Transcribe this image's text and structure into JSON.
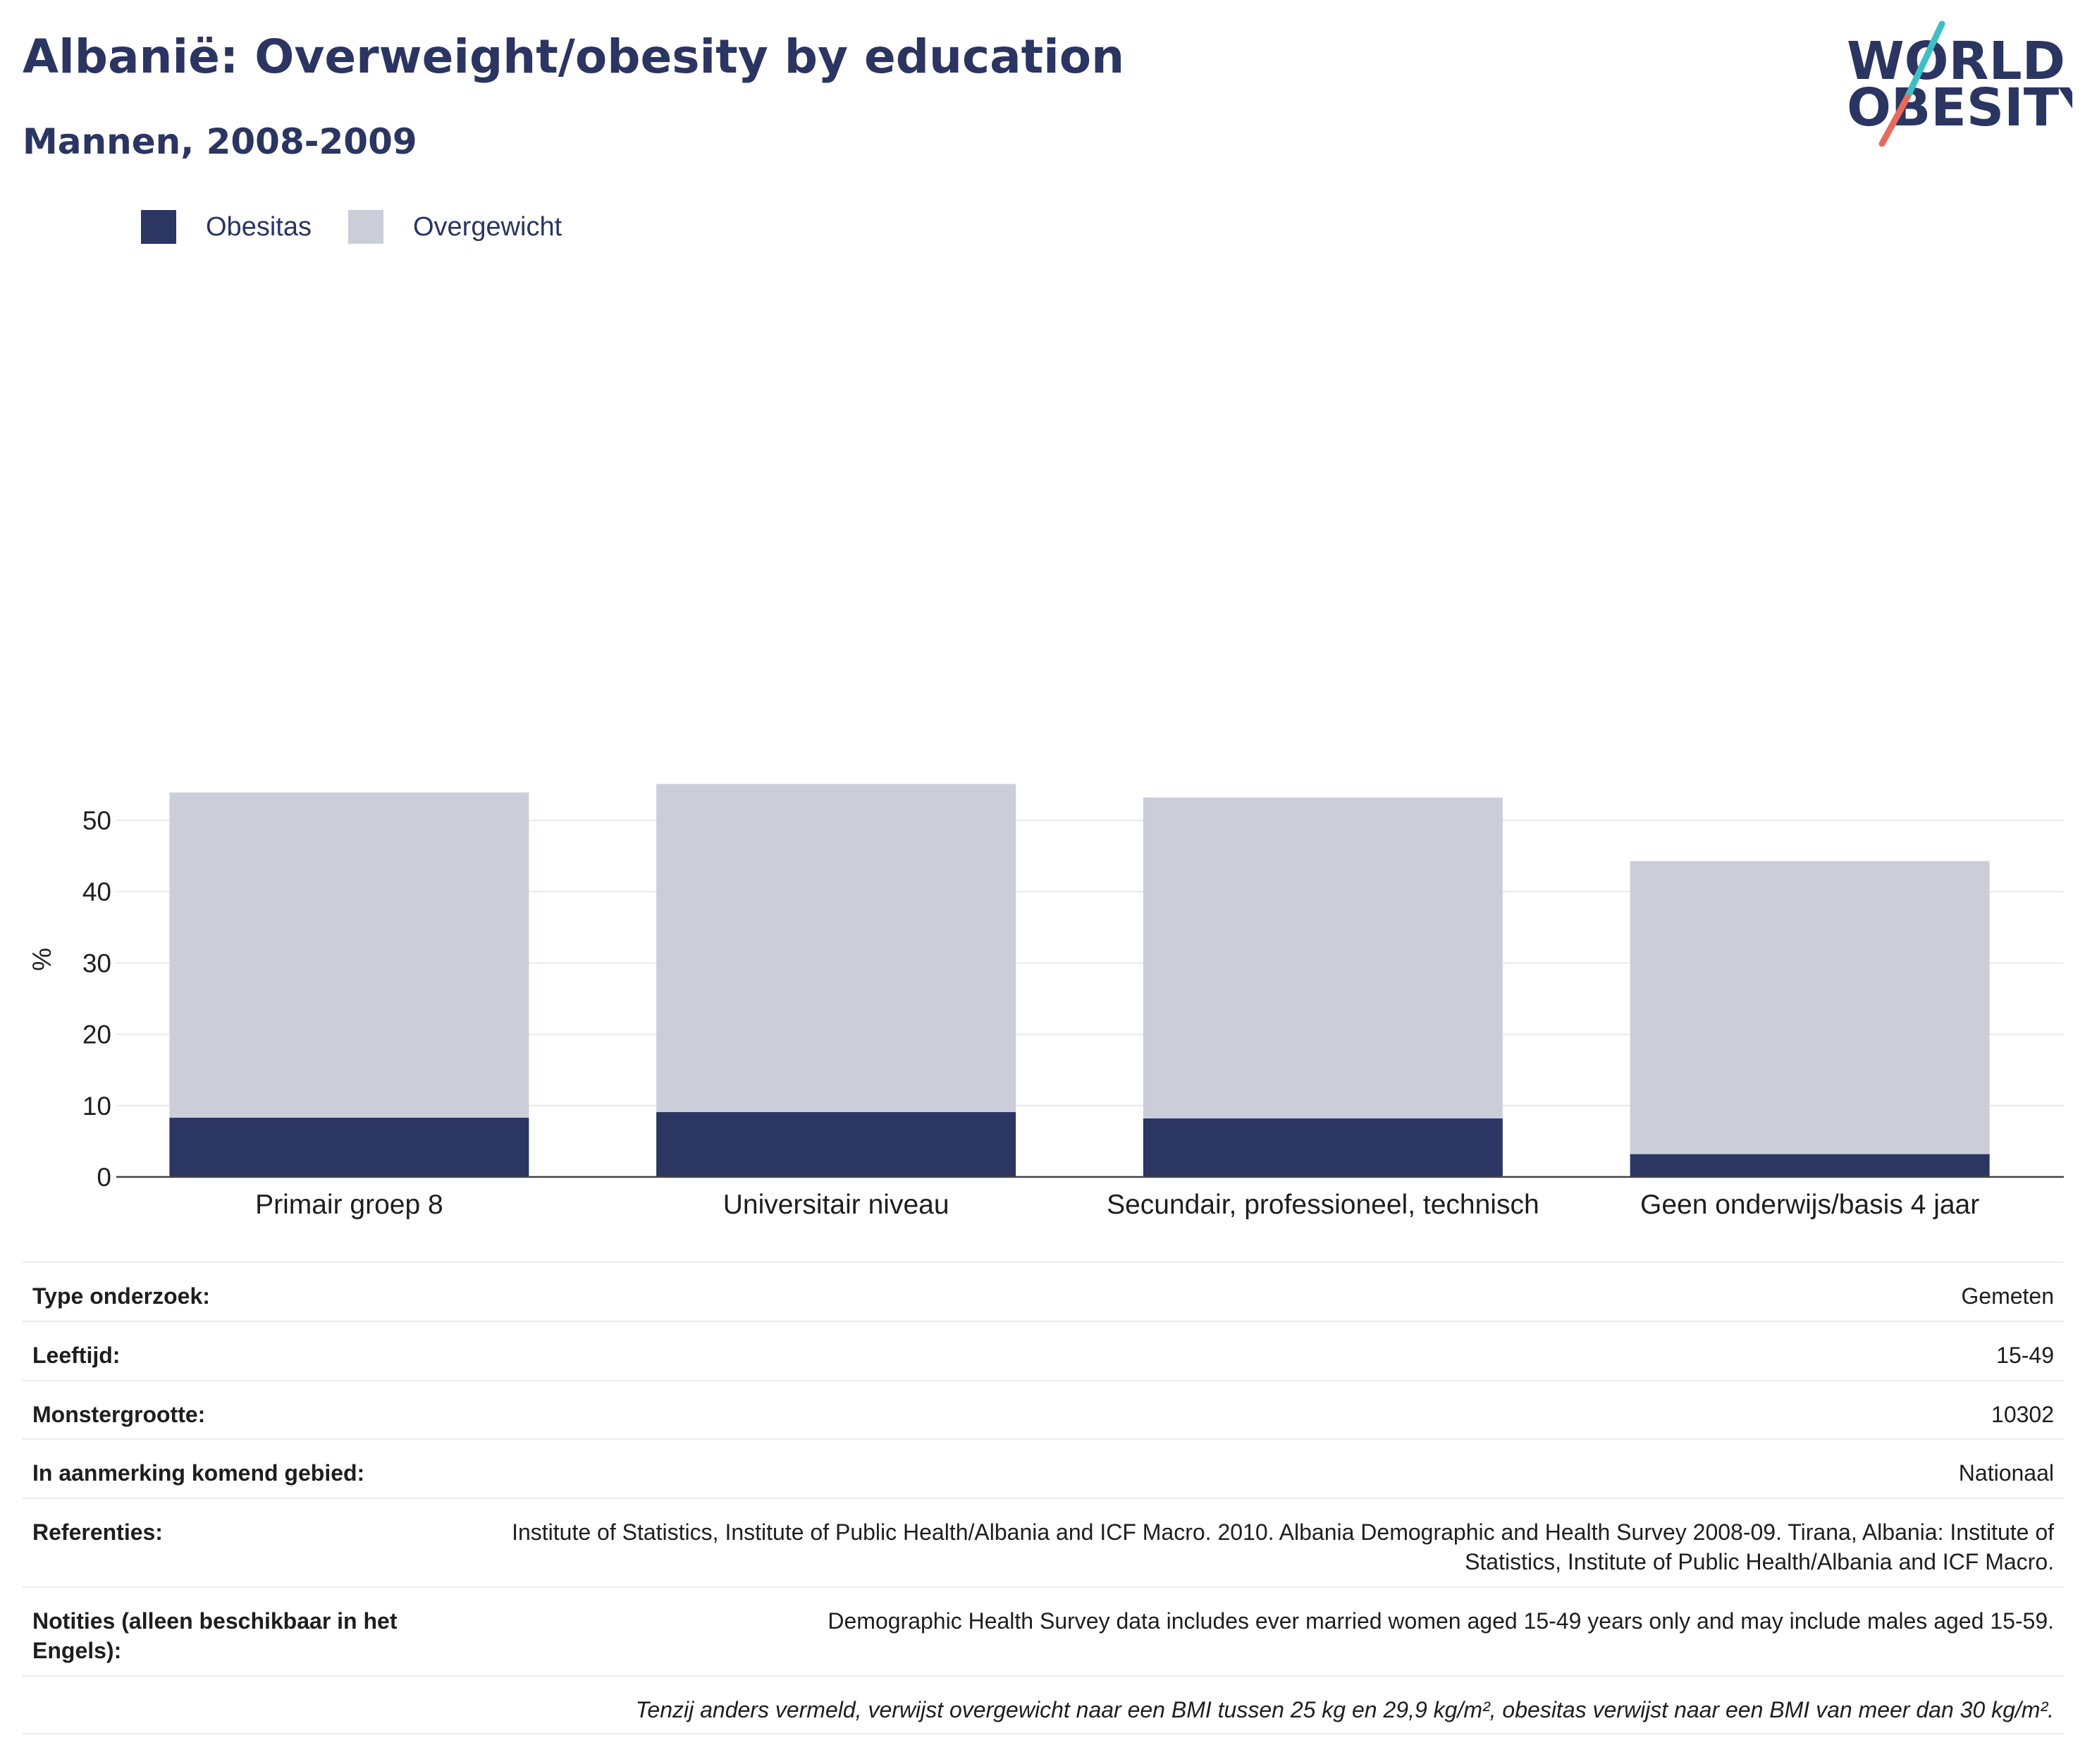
{
  "title": "Albanië: Overweight/obesity by education",
  "subtitle": "Mannen, 2008-2009",
  "logo": {
    "line1": "WORLD",
    "line2": "OBESITY"
  },
  "colors": {
    "obesity": "#2b3663",
    "overweight": "#cbcdd9",
    "logo_teal": "#3ebfc5",
    "logo_coral": "#e86a5c",
    "text_dark": "#2b3561"
  },
  "legend": [
    {
      "label": "Obesitas",
      "color": "#2b3663"
    },
    {
      "label": "Overgewicht",
      "color": "#cbcdd9"
    }
  ],
  "chart_data": {
    "type": "bar",
    "stacked": true,
    "categories": [
      "Primair groep 8",
      "Universitair niveau",
      "Secundair, professioneel, technisch",
      "Geen onderwijs/basis 4 jaar"
    ],
    "series": [
      {
        "name": "Obesitas",
        "values": [
          8.3,
          9.1,
          8.2,
          3.2
        ]
      },
      {
        "name": "Overgewicht",
        "values": [
          45.6,
          46.0,
          45.0,
          41.1
        ]
      }
    ],
    "totals": [
      53.9,
      55.1,
      53.2,
      44.3
    ],
    "ylabel": "%",
    "yticks": [
      0,
      10,
      20,
      30,
      40,
      50
    ],
    "ylim": [
      0,
      55.1
    ],
    "grid": true,
    "legend_position": "top-left"
  },
  "info": {
    "rows": [
      {
        "label": "Type onderzoek:",
        "value": "Gemeten"
      },
      {
        "label": "Leeftijd:",
        "value": "15-49"
      },
      {
        "label": "Monstergrootte:",
        "value": "10302"
      },
      {
        "label": "In aanmerking komend gebied:",
        "value": "Nationaal"
      },
      {
        "label": "Referenties:",
        "value": "Institute of Statistics, Institute of Public Health/Albania and ICF Macro. 2010. Albania Demographic and Health Survey 2008-09. Tirana, Albania: Institute of Statistics, Institute of Public Health/Albania and ICF Macro."
      },
      {
        "label": "Notities (alleen beschikbaar in het Engels):",
        "value": "Demographic Health Survey data includes ever married women aged 15-49 years only and may include males aged 15-59."
      }
    ],
    "footnote": "Tenzij anders vermeld, verwijst overgewicht naar een BMI tussen 25 kg en 29,9 kg/m², obesitas verwijst naar een BMI van meer dan 30 kg/m²."
  }
}
